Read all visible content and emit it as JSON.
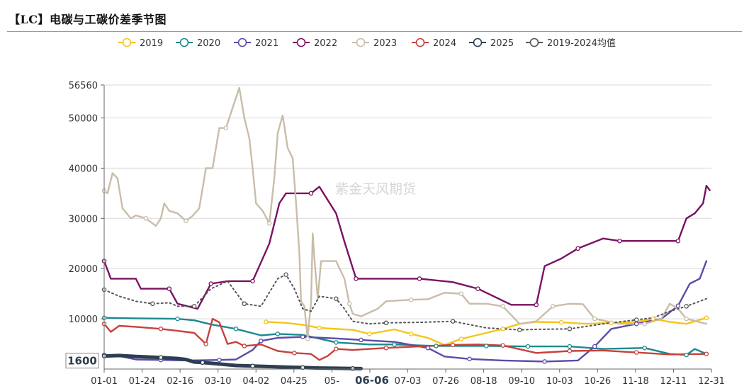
{
  "header": {
    "title": "【LC】电碳与工碳价差季节图"
  },
  "watermark": "紫金天风期货",
  "chart_data": {
    "type": "line",
    "ylim": [
      0,
      56560
    ],
    "y_ticks": [
      10000,
      20000,
      30000,
      40000,
      50000,
      56560
    ],
    "x_ticks": [
      "01-01",
      "01-24",
      "02-16",
      "03-10",
      "04-02",
      "04-25",
      "05-",
      "06-06",
      "07-03",
      "07-26",
      "08-18",
      "09-10",
      "10-03",
      "10-26",
      "11-18",
      "12-11",
      "12-31"
    ],
    "highlight": {
      "x_label": "06-06",
      "y_label": "1600"
    },
    "series": [
      {
        "name": "2019",
        "color": "#f5c518",
        "dashed": false,
        "points": [
          [
            98,
            9400
          ],
          [
            110,
            9200
          ],
          [
            120,
            8800
          ],
          [
            130,
            8200
          ],
          [
            140,
            8000
          ],
          [
            150,
            7800
          ],
          [
            160,
            7000
          ],
          [
            175,
            7900
          ],
          [
            185,
            7000
          ],
          [
            195,
            6200
          ],
          [
            205,
            4800
          ],
          [
            215,
            6000
          ],
          [
            230,
            7200
          ],
          [
            240,
            8000
          ],
          [
            250,
            9000
          ],
          [
            260,
            9400
          ],
          [
            275,
            9300
          ],
          [
            290,
            9000
          ],
          [
            305,
            9200
          ],
          [
            320,
            9400
          ],
          [
            330,
            10000
          ],
          [
            340,
            9400
          ],
          [
            350,
            9000
          ],
          [
            362,
            10200
          ]
        ]
      },
      {
        "name": "2020",
        "color": "#1b8a8c",
        "dashed": false,
        "points": [
          [
            1,
            10200
          ],
          [
            20,
            10100
          ],
          [
            45,
            10000
          ],
          [
            55,
            9700
          ],
          [
            65,
            8900
          ],
          [
            80,
            8000
          ],
          [
            95,
            6700
          ],
          [
            105,
            7000
          ],
          [
            120,
            6800
          ],
          [
            140,
            5300
          ],
          [
            160,
            4900
          ],
          [
            175,
            4900
          ],
          [
            200,
            4600
          ],
          [
            230,
            4600
          ],
          [
            255,
            4500
          ],
          [
            280,
            4500
          ],
          [
            300,
            4000
          ],
          [
            325,
            4200
          ],
          [
            340,
            3000
          ],
          [
            350,
            2800
          ],
          [
            355,
            4000
          ],
          [
            362,
            3000
          ]
        ]
      },
      {
        "name": "2021",
        "color": "#5b4ba8",
        "dashed": false,
        "points": [
          [
            1,
            2800
          ],
          [
            10,
            2600
          ],
          [
            20,
            1900
          ],
          [
            35,
            1800
          ],
          [
            50,
            1700
          ],
          [
            70,
            1800
          ],
          [
            80,
            1900
          ],
          [
            90,
            3800
          ],
          [
            95,
            5600
          ],
          [
            105,
            6200
          ],
          [
            120,
            6400
          ],
          [
            140,
            6100
          ],
          [
            155,
            5800
          ],
          [
            175,
            5400
          ],
          [
            195,
            4200
          ],
          [
            205,
            2500
          ],
          [
            220,
            2000
          ],
          [
            240,
            1700
          ],
          [
            265,
            1500
          ],
          [
            285,
            1700
          ],
          [
            295,
            4500
          ],
          [
            305,
            8000
          ],
          [
            320,
            9000
          ],
          [
            335,
            10000
          ],
          [
            345,
            12600
          ],
          [
            352,
            17000
          ],
          [
            358,
            18000
          ],
          [
            362,
            21500
          ]
        ]
      },
      {
        "name": "2022",
        "color": "#7b1162",
        "dashed": false,
        "points": [
          [
            1,
            21500
          ],
          [
            5,
            18000
          ],
          [
            15,
            18000
          ],
          [
            20,
            18000
          ],
          [
            23,
            16000
          ],
          [
            40,
            16000
          ],
          [
            45,
            13000
          ],
          [
            57,
            12000
          ],
          [
            65,
            17000
          ],
          [
            75,
            17500
          ],
          [
            90,
            17500
          ],
          [
            100,
            25000
          ],
          [
            106,
            33000
          ],
          [
            110,
            35000
          ],
          [
            125,
            35000
          ],
          [
            130,
            36300
          ],
          [
            140,
            31000
          ],
          [
            145,
            25400
          ],
          [
            152,
            18000
          ],
          [
            170,
            18000
          ],
          [
            190,
            18000
          ],
          [
            210,
            17300
          ],
          [
            225,
            16000
          ],
          [
            245,
            12800
          ],
          [
            260,
            12800
          ],
          [
            265,
            20500
          ],
          [
            275,
            22000
          ],
          [
            285,
            24000
          ],
          [
            300,
            26000
          ],
          [
            310,
            25500
          ],
          [
            330,
            25500
          ],
          [
            345,
            25500
          ],
          [
            350,
            30000
          ],
          [
            355,
            31000
          ],
          [
            360,
            33000
          ],
          [
            362,
            36500
          ],
          [
            364,
            35600
          ]
        ]
      },
      {
        "name": "2023",
        "color": "#c9bda8",
        "dashed": false,
        "points": [
          [
            1,
            35500
          ],
          [
            3,
            35000
          ],
          [
            6,
            39000
          ],
          [
            9,
            38000
          ],
          [
            12,
            32000
          ],
          [
            17,
            30000
          ],
          [
            20,
            30600
          ],
          [
            26,
            30000
          ],
          [
            32,
            28500
          ],
          [
            35,
            30000
          ],
          [
            37,
            33000
          ],
          [
            40,
            31500
          ],
          [
            45,
            31000
          ],
          [
            50,
            29500
          ],
          [
            54,
            30500
          ],
          [
            58,
            32000
          ],
          [
            62,
            40000
          ],
          [
            66,
            40000
          ],
          [
            70,
            48000
          ],
          [
            74,
            48000
          ],
          [
            78,
            52000
          ],
          [
            82,
            56000
          ],
          [
            85,
            50000
          ],
          [
            88,
            46000
          ],
          [
            90,
            40000
          ],
          [
            92,
            33000
          ],
          [
            96,
            31500
          ],
          [
            100,
            29000
          ],
          [
            103,
            38000
          ],
          [
            105,
            47000
          ],
          [
            108,
            50500
          ],
          [
            111,
            44000
          ],
          [
            114,
            42000
          ],
          [
            116,
            33000
          ],
          [
            118,
            23000
          ],
          [
            119,
            13500
          ],
          [
            121,
            12500
          ],
          [
            123,
            6000
          ],
          [
            124,
            10000
          ],
          [
            125,
            13000
          ],
          [
            126,
            27000
          ],
          [
            127,
            22000
          ],
          [
            129,
            14000
          ],
          [
            131,
            21500
          ],
          [
            140,
            21500
          ],
          [
            145,
            18000
          ],
          [
            148,
            13000
          ],
          [
            150,
            11000
          ],
          [
            155,
            10500
          ],
          [
            165,
            12000
          ],
          [
            170,
            13500
          ],
          [
            185,
            13800
          ],
          [
            195,
            13900
          ],
          [
            205,
            15200
          ],
          [
            215,
            15000
          ],
          [
            220,
            13000
          ],
          [
            230,
            13000
          ],
          [
            240,
            12500
          ],
          [
            250,
            9000
          ],
          [
            260,
            9500
          ],
          [
            270,
            12500
          ],
          [
            280,
            13000
          ],
          [
            288,
            12900
          ],
          [
            295,
            10000
          ],
          [
            310,
            9000
          ],
          [
            325,
            9000
          ],
          [
            335,
            10000
          ],
          [
            340,
            13000
          ],
          [
            345,
            12000
          ],
          [
            350,
            10000
          ],
          [
            362,
            9000
          ]
        ]
      },
      {
        "name": "2024",
        "color": "#c8413b",
        "dashed": false,
        "points": [
          [
            1,
            9000
          ],
          [
            5,
            7400
          ],
          [
            10,
            8600
          ],
          [
            20,
            8400
          ],
          [
            35,
            8000
          ],
          [
            45,
            7600
          ],
          [
            55,
            7200
          ],
          [
            62,
            5000
          ],
          [
            66,
            10000
          ],
          [
            70,
            9300
          ],
          [
            75,
            5000
          ],
          [
            80,
            5400
          ],
          [
            85,
            4600
          ],
          [
            95,
            4900
          ],
          [
            105,
            3600
          ],
          [
            115,
            3200
          ],
          [
            125,
            3000
          ],
          [
            130,
            1800
          ],
          [
            135,
            2600
          ],
          [
            140,
            4000
          ],
          [
            150,
            3800
          ],
          [
            170,
            4200
          ],
          [
            190,
            4500
          ],
          [
            210,
            4800
          ],
          [
            225,
            4900
          ],
          [
            240,
            4700
          ],
          [
            260,
            3200
          ],
          [
            280,
            3600
          ],
          [
            300,
            3700
          ],
          [
            320,
            3300
          ],
          [
            340,
            2900
          ],
          [
            362,
            3000
          ]
        ]
      },
      {
        "name": "2025",
        "color": "#2d3e50",
        "dashed": false,
        "points": [
          [
            1,
            2600
          ],
          [
            10,
            2700
          ],
          [
            20,
            2500
          ],
          [
            35,
            2300
          ],
          [
            45,
            2100
          ],
          [
            50,
            1900
          ],
          [
            55,
            1400
          ],
          [
            60,
            1300
          ],
          [
            70,
            1000
          ],
          [
            80,
            700
          ],
          [
            90,
            600
          ],
          [
            100,
            500
          ],
          [
            110,
            400
          ],
          [
            120,
            300
          ],
          [
            130,
            200
          ],
          [
            140,
            150
          ],
          [
            150,
            100
          ],
          [
            155,
            80
          ]
        ]
      },
      {
        "name": "2019-2024均值",
        "color": "#555555",
        "dashed": true,
        "points": [
          [
            1,
            15800
          ],
          [
            10,
            14500
          ],
          [
            20,
            13500
          ],
          [
            30,
            13000
          ],
          [
            40,
            13200
          ],
          [
            45,
            12500
          ],
          [
            55,
            12500
          ],
          [
            65,
            16000
          ],
          [
            75,
            17500
          ],
          [
            85,
            13000
          ],
          [
            95,
            12500
          ],
          [
            105,
            18000
          ],
          [
            110,
            18800
          ],
          [
            115,
            16000
          ],
          [
            120,
            12000
          ],
          [
            125,
            11500
          ],
          [
            130,
            14500
          ],
          [
            140,
            14000
          ],
          [
            145,
            12000
          ],
          [
            150,
            9500
          ],
          [
            160,
            9000
          ],
          [
            170,
            9200
          ],
          [
            190,
            9300
          ],
          [
            210,
            9500
          ],
          [
            230,
            8200
          ],
          [
            250,
            7800
          ],
          [
            260,
            7900
          ],
          [
            280,
            8000
          ],
          [
            300,
            9000
          ],
          [
            320,
            9800
          ],
          [
            330,
            10200
          ],
          [
            340,
            11500
          ],
          [
            350,
            12500
          ],
          [
            362,
            14000
          ]
        ]
      }
    ]
  }
}
